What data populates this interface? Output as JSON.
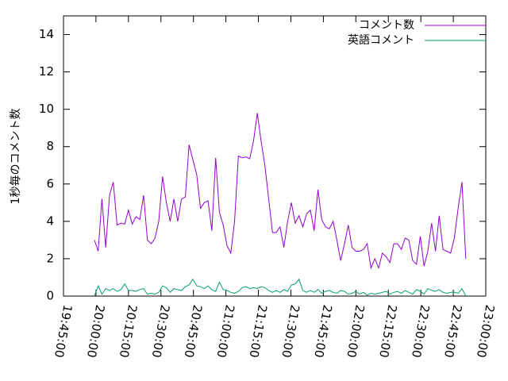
{
  "chart_data": {
    "type": "line",
    "ylabel": "1秒毎のコメント数",
    "x": [
      "19:59:15",
      "20:01:00",
      "20:02:45",
      "20:04:30",
      "20:06:15",
      "20:08:00",
      "20:09:45",
      "20:11:30",
      "20:13:15",
      "20:15:00",
      "20:16:45",
      "20:18:30",
      "20:20:15",
      "20:22:00",
      "20:23:45",
      "20:25:30",
      "20:27:15",
      "20:29:00",
      "20:30:45",
      "20:32:30",
      "20:34:15",
      "20:36:00",
      "20:37:45",
      "20:39:30",
      "20:41:15",
      "20:43:00",
      "20:44:45",
      "20:46:30",
      "20:48:15",
      "20:50:00",
      "20:51:45",
      "20:53:30",
      "20:55:15",
      "20:57:00",
      "20:58:45",
      "21:00:30",
      "21:02:15",
      "21:04:00",
      "21:05:45",
      "21:07:30",
      "21:09:15",
      "21:11:00",
      "21:12:45",
      "21:14:30",
      "21:16:15",
      "21:18:00",
      "21:19:45",
      "21:21:30",
      "21:23:15",
      "21:25:00",
      "21:26:45",
      "21:28:30",
      "21:30:15",
      "21:32:00",
      "21:33:45",
      "21:35:30",
      "21:37:15",
      "21:39:00",
      "21:40:45",
      "21:42:30",
      "21:44:15",
      "21:46:00",
      "21:47:45",
      "21:49:30",
      "21:51:15",
      "21:53:00",
      "21:54:45",
      "21:56:30",
      "21:58:15",
      "22:00:00",
      "22:01:45",
      "22:03:30",
      "22:05:15",
      "22:07:00",
      "22:08:45",
      "22:10:30",
      "22:12:15",
      "22:14:00",
      "22:15:45",
      "22:17:30",
      "22:19:15",
      "22:21:00",
      "22:22:45",
      "22:24:30",
      "22:26:15",
      "22:28:00",
      "22:29:45",
      "22:31:30",
      "22:33:15",
      "22:35:00",
      "22:36:45",
      "22:38:30",
      "22:40:15",
      "22:42:00",
      "22:43:45",
      "22:45:30",
      "22:47:15",
      "22:49:00",
      "22:50:45"
    ],
    "series": [
      {
        "name": "コメント数",
        "color": "#9400d3",
        "values": [
          3.0,
          2.4,
          5.2,
          2.6,
          5.4,
          6.1,
          3.8,
          3.9,
          3.85,
          4.6,
          3.85,
          4.25,
          4.1,
          5.4,
          3.0,
          2.8,
          3.1,
          4.0,
          6.4,
          5.0,
          4.0,
          5.2,
          4.0,
          5.2,
          5.3,
          8.1,
          7.3,
          6.5,
          4.7,
          5.0,
          5.1,
          3.5,
          7.4,
          4.5,
          3.8,
          2.7,
          2.3,
          4.0,
          7.5,
          7.4,
          7.45,
          7.35,
          8.3,
          9.8,
          8.3,
          7.0,
          5.2,
          3.4,
          3.4,
          3.7,
          2.6,
          4.0,
          5.0,
          3.9,
          4.3,
          3.7,
          4.4,
          4.6,
          3.5,
          5.7,
          4.1,
          3.7,
          3.6,
          4.0,
          3.0,
          1.9,
          2.8,
          3.8,
          2.6,
          2.4,
          2.4,
          2.5,
          2.8,
          1.5,
          2.0,
          1.5,
          2.3,
          2.1,
          1.8,
          2.8,
          2.8,
          2.5,
          3.1,
          3.0,
          1.9,
          1.7,
          3.2,
          1.6,
          2.4,
          3.9,
          2.4,
          4.3,
          2.5,
          2.4,
          2.3,
          3.1,
          4.7,
          6.1,
          2.0
        ]
      },
      {
        "name": "英語コメント",
        "color": "#009e73",
        "values": [
          0,
          0.55,
          0.1,
          0.4,
          0.3,
          0.4,
          0.25,
          0.35,
          0.65,
          0.3,
          0.3,
          0.25,
          0.35,
          0.4,
          0.1,
          0.15,
          0.1,
          0.2,
          0.55,
          0.45,
          0.2,
          0.4,
          0.35,
          0.3,
          0.5,
          0.6,
          0.9,
          0.55,
          0.5,
          0.4,
          0.55,
          0.35,
          0.25,
          0.75,
          0.35,
          0.3,
          0.2,
          0.15,
          0.25,
          0.45,
          0.5,
          0.4,
          0.45,
          0.4,
          0.5,
          0.45,
          0.3,
          0.2,
          0.3,
          0.2,
          0.35,
          0.25,
          0.6,
          0.65,
          0.9,
          0.3,
          0.2,
          0.3,
          0.2,
          0.35,
          0.15,
          0.25,
          0.3,
          0.2,
          0.15,
          0.3,
          0.25,
          0.1,
          0.15,
          0.25,
          0.1,
          0.2,
          0.05,
          0.15,
          0.1,
          0.15,
          0.2,
          0.25,
          0.1,
          0.2,
          0.25,
          0.15,
          0.3,
          0.2,
          0.1,
          0.35,
          0.25,
          0.1,
          0.4,
          0.3,
          0.25,
          0.35,
          0.2,
          0.15,
          0.2,
          0.2,
          0.15,
          0.4,
          0.0
        ]
      }
    ],
    "xlim": [
      "19:45:00",
      "23:00:00"
    ],
    "xticks": [
      "19:45:00",
      "20:00:00",
      "20:15:00",
      "20:30:00",
      "20:45:00",
      "21:00:00",
      "21:15:00",
      "21:30:00",
      "21:45:00",
      "22:00:00",
      "22:15:00",
      "22:30:00",
      "22:45:00",
      "23:00:00"
    ],
    "ylim": [
      0,
      15
    ],
    "yticks": [
      0,
      2,
      4,
      6,
      8,
      10,
      12,
      14
    ],
    "legend": "upper right"
  }
}
